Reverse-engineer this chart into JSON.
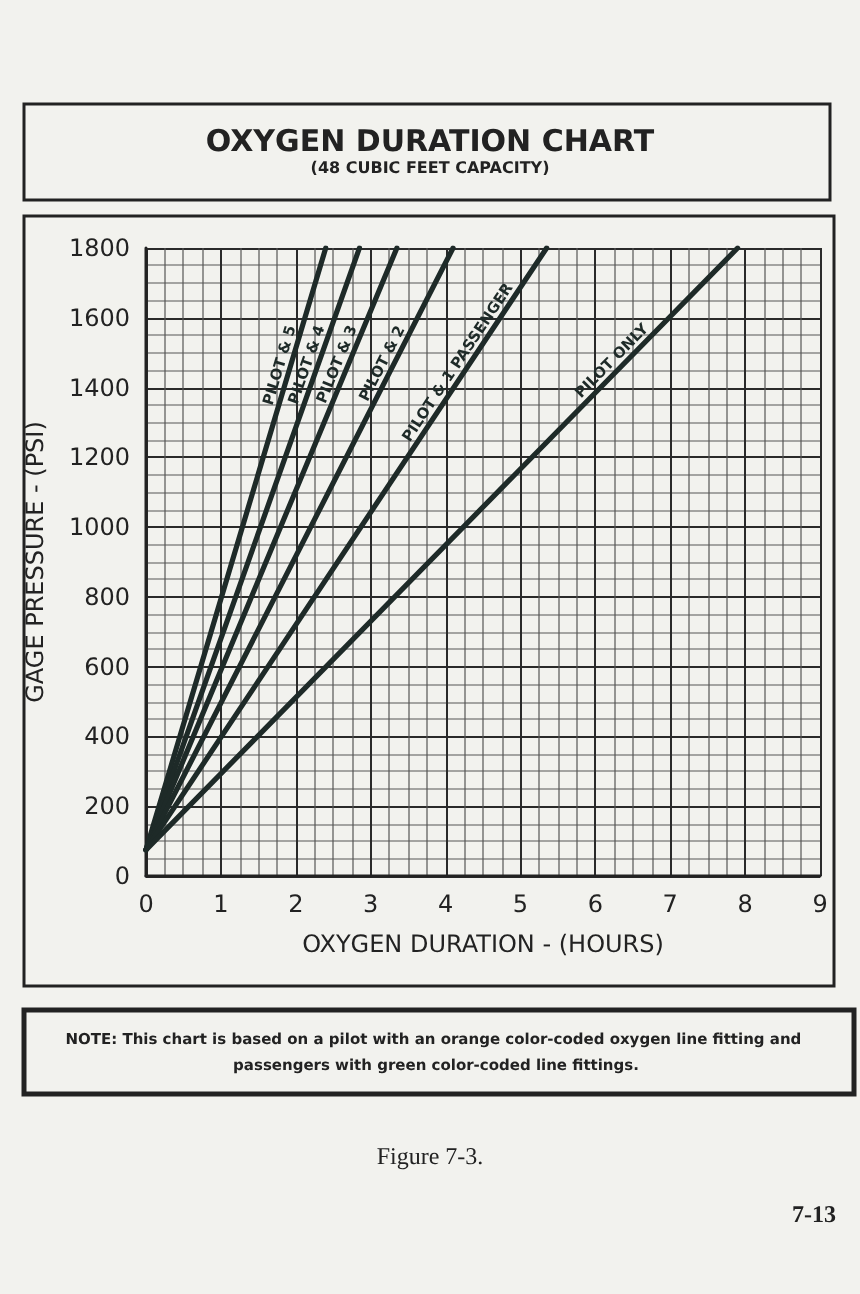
{
  "chart_data": {
    "type": "line",
    "title": "OXYGEN DURATION CHART",
    "subtitle": "(48 CUBIC FEET CAPACITY)",
    "xlabel": "OXYGEN DURATION - (HOURS)",
    "ylabel": "GAGE PRESSURE - (PSI)",
    "series": [
      {
        "name": "PILOT & 5",
        "color": "#1e2a28",
        "x": [
          0,
          2.4
        ],
        "values": [
          75,
          1800
        ]
      },
      {
        "name": "PILOT & 4",
        "color": "#1e2a28",
        "x": [
          0,
          2.85
        ],
        "values": [
          75,
          1800
        ]
      },
      {
        "name": "PILOT & 3",
        "color": "#1e2a28",
        "x": [
          0,
          3.35
        ],
        "values": [
          75,
          1800
        ]
      },
      {
        "name": "PILOT & 2",
        "color": "#1e2a28",
        "x": [
          0,
          4.1
        ],
        "values": [
          75,
          1800
        ]
      },
      {
        "name": "PILOT & 1 PASSENGER",
        "color": "#1e2a28",
        "x": [
          0,
          5.35
        ],
        "values": [
          75,
          1800
        ]
      },
      {
        "name": "PILOT ONLY",
        "color": "#1e2a28",
        "x": [
          0,
          7.9
        ],
        "values": [
          75,
          1800
        ]
      }
    ],
    "xlim": [
      0,
      9
    ],
    "xticks": [
      0,
      1,
      2,
      3,
      4,
      5,
      6,
      7,
      8,
      9
    ],
    "ylim": [
      0,
      1800
    ],
    "yticks": [
      0,
      200,
      400,
      600,
      800,
      1000,
      1200,
      1400,
      1600,
      1800
    ],
    "grid": true,
    "marker": "none",
    "line_style": "solid",
    "legend": false,
    "annotations": [
      "NOTE: This chart is based on a pilot with an orange color-coded oxygen line fitting and passengers with green color-coded line fittings.",
      "Figure 7-3.",
      "7-13"
    ]
  }
}
